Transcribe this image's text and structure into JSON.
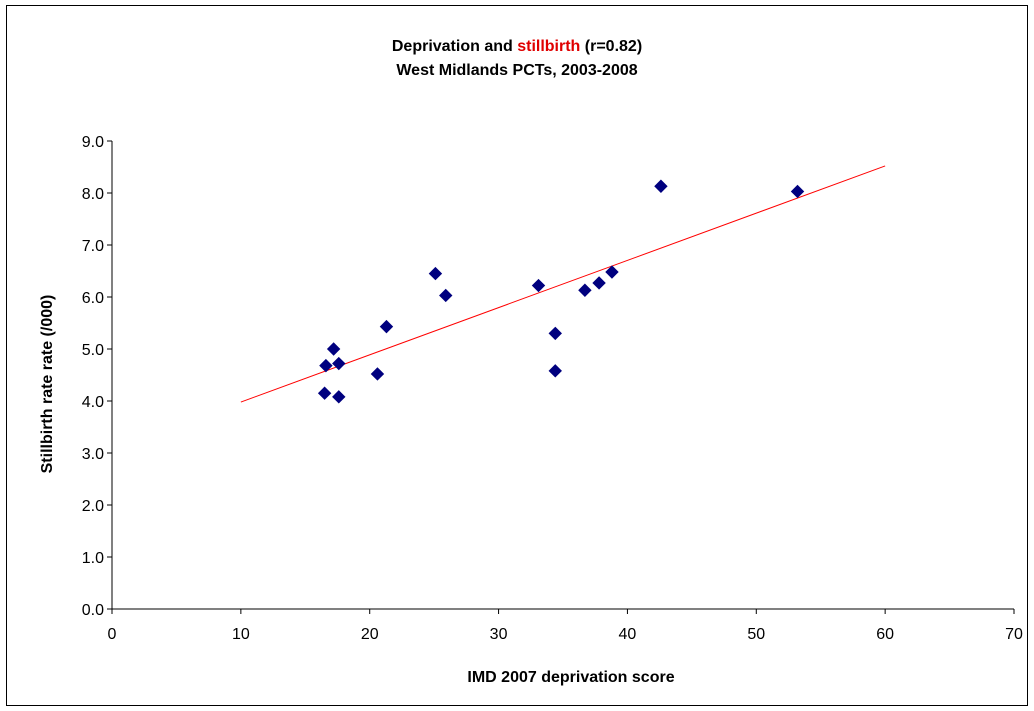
{
  "chart_data": {
    "type": "scatter",
    "title_parts": {
      "before": "Deprivation and ",
      "highlight": "stillbirth",
      "after": " (r=0.82)"
    },
    "subtitle": "West Midlands PCTs, 2003-2008",
    "xlabel": "IMD 2007 deprivation score",
    "ylabel": "Stillbirth rate rate (/000)",
    "xlim": [
      0,
      70
    ],
    "ylim": [
      0,
      9
    ],
    "x_ticks": [
      0,
      10,
      20,
      30,
      40,
      50,
      60,
      70
    ],
    "x_tick_labels": [
      "0",
      "10",
      "20",
      "30",
      "40",
      "50",
      "60",
      "70"
    ],
    "y_ticks": [
      0,
      1,
      2,
      3,
      4,
      5,
      6,
      7,
      8,
      9
    ],
    "y_tick_labels": [
      "0.0",
      "1.0",
      "2.0",
      "3.0",
      "4.0",
      "5.0",
      "6.0",
      "7.0",
      "8.0",
      "9.0"
    ],
    "grid": false,
    "legend": "none",
    "points": [
      {
        "x": 16.5,
        "y": 4.15
      },
      {
        "x": 16.6,
        "y": 4.68
      },
      {
        "x": 17.2,
        "y": 5.0
      },
      {
        "x": 17.6,
        "y": 4.72
      },
      {
        "x": 17.6,
        "y": 4.08
      },
      {
        "x": 20.6,
        "y": 4.52
      },
      {
        "x": 21.3,
        "y": 5.43
      },
      {
        "x": 25.1,
        "y": 6.45
      },
      {
        "x": 25.9,
        "y": 6.03
      },
      {
        "x": 33.1,
        "y": 6.22
      },
      {
        "x": 34.4,
        "y": 5.3
      },
      {
        "x": 34.4,
        "y": 4.58
      },
      {
        "x": 36.7,
        "y": 6.13
      },
      {
        "x": 37.8,
        "y": 6.27
      },
      {
        "x": 38.8,
        "y": 6.48
      },
      {
        "x": 42.6,
        "y": 8.13
      },
      {
        "x": 53.2,
        "y": 8.03
      }
    ],
    "trendline": {
      "x": [
        10,
        60
      ],
      "y": [
        3.98,
        8.52
      ]
    },
    "colors": {
      "points": "#00007f",
      "trendline": "#ff0000",
      "title_highlight": "#e00000",
      "axis": "#000000"
    }
  }
}
